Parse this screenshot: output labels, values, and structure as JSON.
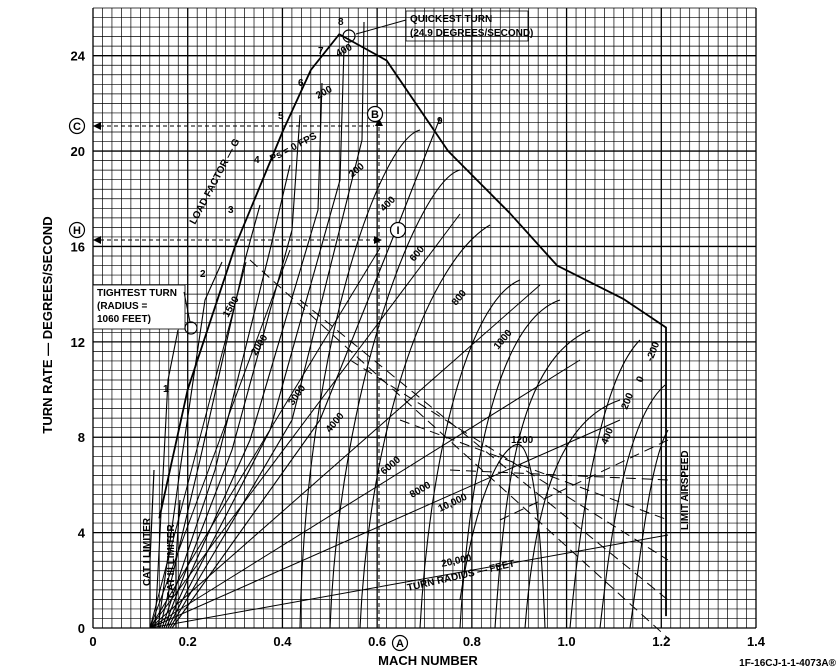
{
  "chart_data": {
    "type": "line",
    "xlabel": "MACH NUMBER",
    "ylabel": "TURN RATE — DEGREES/SECOND",
    "xlim": [
      0,
      1.4
    ],
    "ylim": [
      0,
      26
    ],
    "x_ticks": [
      "0",
      "0.2",
      "0.4",
      "0.6",
      "0.8",
      "1.0",
      "1.2",
      "1.4"
    ],
    "y_ticks": [
      "0",
      "4",
      "8",
      "12",
      "16",
      "20",
      "24"
    ],
    "grid": true,
    "figure_id": "1F-16CJ-1-1-4073A®",
    "envelope": {
      "name": "Ps = 0 FPS",
      "points": [
        [
          0.14,
          4.6
        ],
        [
          0.2,
          10.0
        ],
        [
          0.3,
          16.0
        ],
        [
          0.4,
          20.8
        ],
        [
          0.46,
          23.4
        ],
        [
          0.52,
          24.9
        ],
        [
          0.62,
          23.8
        ],
        [
          0.75,
          20.0
        ],
        [
          0.88,
          17.4
        ],
        [
          0.98,
          15.2
        ],
        [
          1.12,
          13.8
        ],
        [
          1.21,
          12.6
        ],
        [
          1.21,
          0.5
        ]
      ]
    },
    "load_factor_lines": {
      "label": "LOAD FACTOR — G",
      "values": [
        "1",
        "2",
        "3",
        "4",
        "5",
        "6",
        "7",
        "8",
        "9"
      ]
    },
    "turn_radius_lines": {
      "label": "TURN RADIUS — FEET",
      "values": [
        "1500",
        "2000",
        "3000",
        "4000",
        "6000",
        "8000",
        "10,000",
        "20,000"
      ]
    },
    "ps_lines": {
      "labels": [
        "400",
        "200",
        "Ps = 0 FPS",
        "200",
        "400",
        "600",
        "800",
        "1000",
        "1200",
        "-200",
        "0",
        "200",
        "400"
      ]
    },
    "limits": {
      "cat1": "CAT I LIMITER",
      "cat3": "CAT III LIMITER",
      "airspeed": "LIMIT AIRSPEED"
    },
    "annotations": {
      "quickest_line1": "QUICKEST TURN",
      "quickest_line2": "(24.9 DEGREES/SECOND)",
      "tightest_line1": "TIGHTEST TURN",
      "tightest_line2": "(RADIUS =",
      "tightest_line3": "1060 FEET)",
      "point_A": "A",
      "point_B": "B",
      "point_C": "C",
      "point_H": "H",
      "point_I": "I"
    }
  }
}
